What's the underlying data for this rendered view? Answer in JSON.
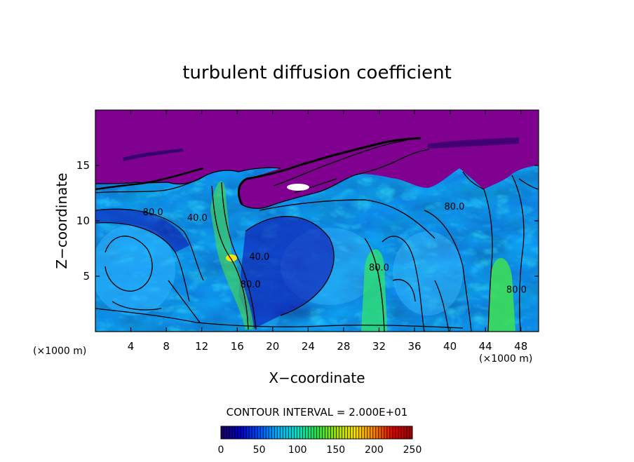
{
  "chart_data": {
    "type": "heatmap",
    "title": "turbulent diffusion coefficient",
    "xlabel": "X−coordinate",
    "ylabel": "Z−coordinate",
    "x_unit_left": "(×1000 m)",
    "x_unit_right": "(×1000 m)",
    "xlim": [
      0,
      50
    ],
    "ylim": [
      0,
      20
    ],
    "x_ticks": [
      4,
      8,
      12,
      16,
      20,
      24,
      28,
      32,
      36,
      40,
      44,
      48
    ],
    "y_ticks": [
      5,
      10,
      15
    ],
    "contour_interval_text": "CONTOUR INTERVAL = 2.000E+01",
    "colorbar": {
      "min": 0,
      "max": 250,
      "ticks": [
        0,
        50,
        100,
        150,
        200,
        250
      ],
      "colors": [
        "#1a0060",
        "#0000c8",
        "#0050ff",
        "#00b4ff",
        "#00e0c0",
        "#20e040",
        "#a0e000",
        "#ffe000",
        "#ff8000",
        "#e00000",
        "#a00000"
      ]
    },
    "field": {
      "top_value_color": "#800090",
      "background_color": "#1c5cf0",
      "description_values": {
        "upper_region_z_min": 12,
        "max_value": 250
      }
    },
    "contour_labels": [
      {
        "text": "80.0",
        "x": 6.5,
        "z": 10.5
      },
      {
        "text": "40.0",
        "x": 11.5,
        "z": 10.0
      },
      {
        "text": "40.0",
        "x": 18.5,
        "z": 6.5
      },
      {
        "text": "80.0",
        "x": 17.5,
        "z": 4.0
      },
      {
        "text": "80.0",
        "x": 32.0,
        "z": 5.5
      },
      {
        "text": "80.0",
        "x": 47.5,
        "z": 3.5
      },
      {
        "text": "80.0",
        "x": 40.5,
        "z": 11.0
      }
    ]
  }
}
